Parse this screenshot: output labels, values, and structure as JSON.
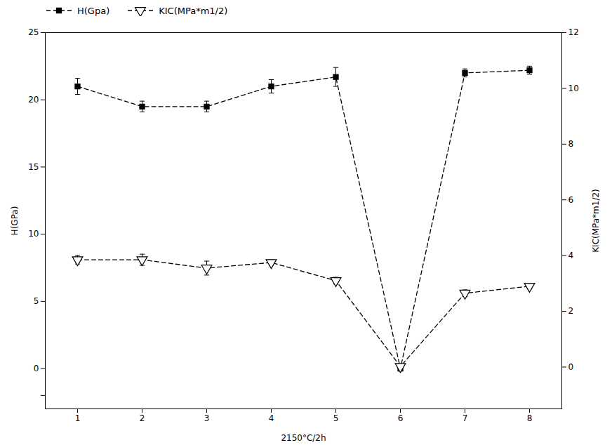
{
  "chart_data": {
    "type": "line",
    "x": [
      1,
      2,
      3,
      4,
      5,
      6,
      7,
      8
    ],
    "xlabel": "2150°C/2h",
    "xlim": [
      0.5,
      8.5
    ],
    "xticks": [
      1,
      2,
      3,
      4,
      5,
      6,
      7,
      8
    ],
    "ylabel": "H(GPa)",
    "ylim": [
      -3,
      25
    ],
    "yticks": [
      {
        "value": -2,
        "label": ""
      },
      0,
      5,
      10,
      15,
      20,
      25
    ],
    "y2label": "KIC(MPa*m1/2)",
    "y2lim": [
      -1.5,
      12
    ],
    "y2ticks": [
      0,
      2,
      4,
      6,
      8,
      10,
      12
    ],
    "legend": "upper left",
    "series": [
      {
        "name": "H(Gpa)",
        "color": "#000000",
        "marker": "square",
        "line_style": "dashed",
        "values": [
          21.0,
          19.5,
          19.5,
          21.0,
          21.7,
          0.0,
          22.0,
          22.2
        ],
        "errors": [
          0.6,
          0.4,
          0.4,
          0.5,
          0.7,
          0.1,
          0.3,
          0.3
        ]
      },
      {
        "name": "KIC(MPa*m1/2)",
        "axis": "y2",
        "color": "#000000",
        "marker": "triangle-down",
        "line_style": "dashed",
        "values": [
          3.85,
          3.85,
          3.55,
          3.75,
          3.1,
          0.02,
          2.65,
          2.9
        ],
        "errors": [
          0.15,
          0.2,
          0.25,
          0.1,
          0.12,
          0.02,
          0.12,
          0.1
        ]
      }
    ]
  }
}
